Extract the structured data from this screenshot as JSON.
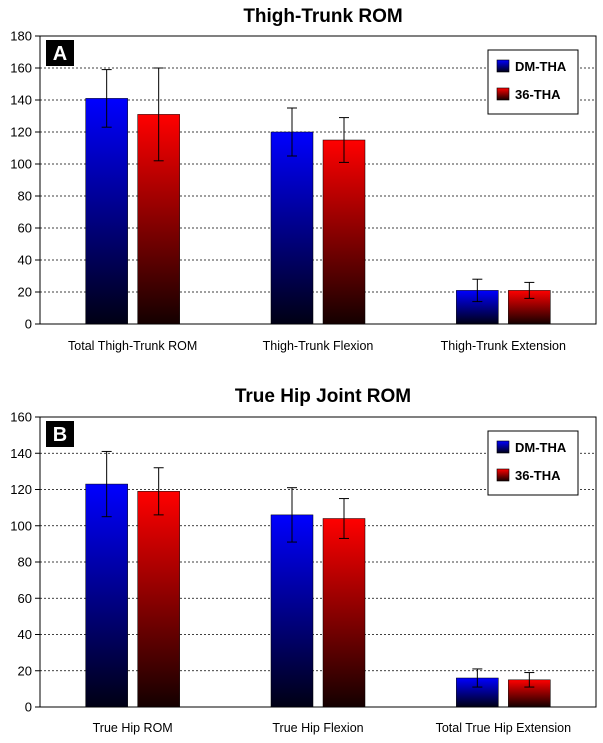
{
  "chart_data": [
    {
      "type": "bar",
      "panel_label": "A",
      "title": "Thigh-Trunk ROM",
      "xlabel": "",
      "ylabel": "",
      "ylim": [
        0,
        180
      ],
      "yticks": [
        0,
        20,
        40,
        60,
        80,
        100,
        120,
        140,
        160,
        180
      ],
      "grid": true,
      "legend_position": "top-right",
      "categories": [
        "Total Thigh-Trunk ROM",
        "Thigh-Trunk Flexion",
        "Thigh-Trunk Extension"
      ],
      "series": [
        {
          "name": "DM-THA",
          "color": "#0000ff",
          "values": [
            141,
            120,
            21
          ],
          "error": [
            18,
            15,
            7
          ]
        },
        {
          "name": "36-THA",
          "color": "#ff0000",
          "values": [
            131,
            115,
            21
          ],
          "error": [
            29,
            14,
            5
          ]
        }
      ]
    },
    {
      "type": "bar",
      "panel_label": "B",
      "title": "True Hip Joint ROM",
      "xlabel": "",
      "ylabel": "",
      "ylim": [
        0,
        160
      ],
      "yticks": [
        0,
        20,
        40,
        60,
        80,
        100,
        120,
        140,
        160
      ],
      "grid": true,
      "legend_position": "top-right",
      "categories": [
        "True Hip ROM",
        "True Hip Flexion",
        "Total True Hip Extension"
      ],
      "series": [
        {
          "name": "DM-THA",
          "color": "#0000ff",
          "values": [
            123,
            106,
            16
          ],
          "error": [
            18,
            15,
            5
          ]
        },
        {
          "name": "36-THA",
          "color": "#ff0000",
          "values": [
            119,
            104,
            15
          ],
          "error": [
            13,
            11,
            4
          ]
        }
      ]
    }
  ]
}
